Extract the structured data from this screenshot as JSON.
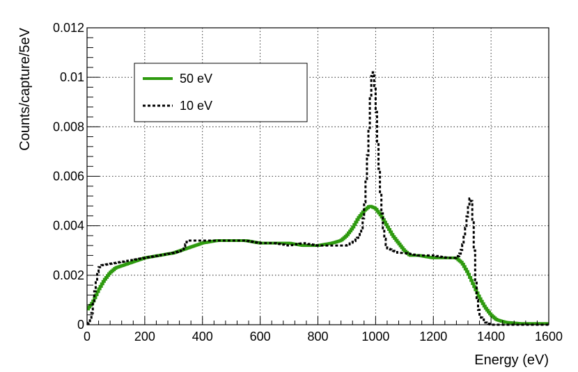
{
  "chart_data": {
    "type": "line",
    "xlabel": "Energy (eV)",
    "ylabel": "Counts/capture/5eV",
    "xlim": [
      0,
      1600
    ],
    "ylim": [
      0,
      0.012
    ],
    "x_ticks": [
      "0",
      "200",
      "400",
      "600",
      "800",
      "1000",
      "1200",
      "1400",
      "1600"
    ],
    "y_ticks": [
      "0",
      "0.002",
      "0.004",
      "0.006",
      "0.008",
      "0.01",
      "0.012"
    ],
    "grid": true,
    "legend_position": "top-left",
    "series": [
      {
        "name": "50 eV",
        "color": "#2e9a0f",
        "style": "solid-step",
        "x": [
          0,
          20,
          40,
          60,
          80,
          100,
          150,
          200,
          250,
          300,
          350,
          400,
          450,
          500,
          550,
          600,
          650,
          700,
          750,
          800,
          850,
          880,
          900,
          920,
          940,
          960,
          980,
          1000,
          1020,
          1040,
          1060,
          1080,
          1100,
          1120,
          1150,
          1200,
          1250,
          1280,
          1300,
          1320,
          1340,
          1360,
          1380,
          1400,
          1420,
          1450,
          1500,
          1600
        ],
        "y": [
          0.0006,
          0.0009,
          0.0014,
          0.0018,
          0.0021,
          0.0023,
          0.0025,
          0.0027,
          0.0028,
          0.0029,
          0.0031,
          0.0033,
          0.0034,
          0.0034,
          0.0034,
          0.0033,
          0.0033,
          0.0033,
          0.0032,
          0.0032,
          0.0033,
          0.0034,
          0.0036,
          0.0039,
          0.0043,
          0.0046,
          0.0048,
          0.0047,
          0.0044,
          0.004,
          0.0036,
          0.0033,
          0.003,
          0.0028,
          0.0028,
          0.0027,
          0.0027,
          0.0027,
          0.0025,
          0.0021,
          0.0016,
          0.0011,
          0.0007,
          0.0004,
          0.0002,
          0.0001,
          5e-05,
          5e-05
        ]
      },
      {
        "name": "10 eV",
        "color": "#000000",
        "style": "dotted-step",
        "x": [
          0,
          10,
          20,
          30,
          40,
          50,
          100,
          150,
          200,
          250,
          300,
          330,
          340,
          350,
          400,
          450,
          500,
          550,
          600,
          650,
          700,
          750,
          800,
          850,
          900,
          930,
          950,
          960,
          970,
          980,
          985,
          990,
          995,
          1000,
          1010,
          1020,
          1030,
          1040,
          1060,
          1080,
          1100,
          1150,
          1200,
          1250,
          1280,
          1290,
          1300,
          1310,
          1320,
          1325,
          1330,
          1335,
          1340,
          1345,
          1350,
          1360,
          1380,
          1400,
          1450,
          1600
        ],
        "y": [
          0.0,
          0.0001,
          0.0006,
          0.0016,
          0.0023,
          0.0024,
          0.0025,
          0.0026,
          0.0027,
          0.0028,
          0.0029,
          0.003,
          0.0032,
          0.0034,
          0.0034,
          0.0034,
          0.0034,
          0.0034,
          0.0033,
          0.0033,
          0.0032,
          0.0033,
          0.0032,
          0.0032,
          0.0032,
          0.0034,
          0.0037,
          0.0045,
          0.0063,
          0.0085,
          0.0098,
          0.0103,
          0.0101,
          0.0092,
          0.0068,
          0.0048,
          0.0036,
          0.0031,
          0.003,
          0.0029,
          0.0029,
          0.0028,
          0.0028,
          0.0027,
          0.0027,
          0.0028,
          0.0031,
          0.0037,
          0.0046,
          0.005,
          0.0052,
          0.0048,
          0.0036,
          0.0024,
          0.0012,
          0.0004,
          0.0001,
          0.0,
          0.0,
          0.0
        ]
      }
    ]
  }
}
